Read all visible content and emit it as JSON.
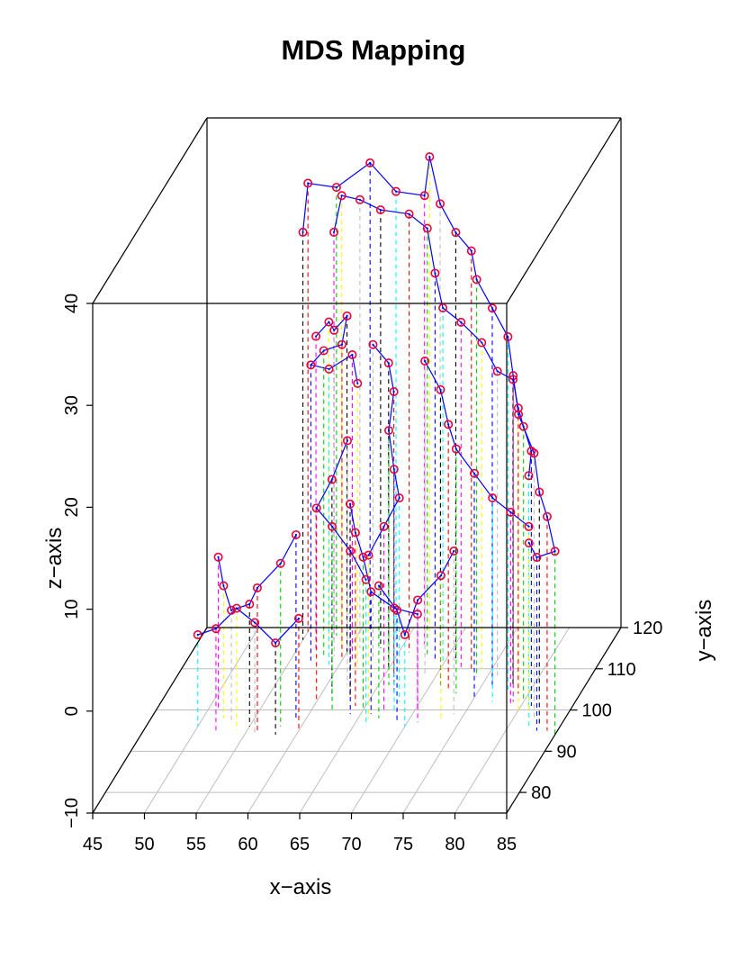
{
  "chart_data": {
    "type": "scatter3d",
    "title": "MDS Mapping",
    "xlabel": "x−axis",
    "ylabel": "y−axis",
    "zlabel": "z−axis",
    "xlim": [
      45,
      85
    ],
    "ylim": [
      75,
      120
    ],
    "zlim": [
      -10,
      40
    ],
    "xticks": [
      "45",
      "50",
      "55",
      "60",
      "65",
      "70",
      "75",
      "80",
      "85"
    ],
    "yticks": [
      "80",
      "90",
      "100",
      "110",
      "120"
    ],
    "zticks": [
      "−10",
      "0",
      "10",
      "20",
      "30",
      "40"
    ],
    "point_color": "#e8003c",
    "line_color": "#0000ff",
    "drop_line_colors": [
      "#000000",
      "#ff0000",
      "#00cd00",
      "#0000ff",
      "#00ffff",
      "#ff00ff",
      "#ffff00",
      "#bebebe"
    ],
    "grid": true,
    "paths": [
      [
        [
          55,
          117,
          30
        ],
        [
          55,
          119,
          34
        ],
        [
          58,
          118,
          34
        ],
        [
          61,
          119,
          36
        ],
        [
          64,
          117,
          34
        ],
        [
          67,
          116,
          34
        ],
        [
          67,
          118,
          37
        ],
        [
          69,
          114,
          34
        ],
        [
          71,
          112,
          32
        ],
        [
          73,
          110,
          31
        ],
        [
          74,
          108,
          29
        ],
        [
          76,
          106,
          27
        ],
        [
          78,
          104,
          25
        ],
        [
          79,
          102,
          22
        ],
        [
          80,
          100,
          19
        ],
        [
          82,
          98,
          16
        ],
        [
          83,
          96,
          13
        ],
        [
          84,
          95,
          11
        ],
        [
          85,
          94,
          8
        ],
        [
          83,
          95,
          7
        ],
        [
          82,
          96,
          8
        ]
      ],
      [
        [
          58,
          117,
          30
        ],
        [
          59,
          116,
          34
        ],
        [
          61,
          115,
          34
        ],
        [
          63,
          115,
          33
        ],
        [
          66,
          114,
          33
        ],
        [
          68,
          113,
          32
        ],
        [
          69,
          112,
          28
        ],
        [
          70,
          111,
          25
        ],
        [
          72,
          110,
          24
        ],
        [
          74,
          110,
          22
        ],
        [
          76,
          108,
          20
        ],
        [
          78,
          106,
          20
        ],
        [
          79,
          104,
          18
        ],
        [
          80,
          102,
          17
        ],
        [
          81,
          101,
          15
        ],
        [
          81,
          100,
          13
        ]
      ],
      [
        [
          57,
          114,
          21
        ],
        [
          58,
          115,
          22
        ],
        [
          59,
          113,
          22
        ],
        [
          60,
          114,
          23
        ],
        [
          60,
          112,
          21
        ],
        [
          58,
          113,
          20
        ],
        [
          57,
          112,
          19
        ],
        [
          59,
          111,
          19
        ],
        [
          61,
          112,
          20
        ],
        [
          62,
          110,
          18
        ]
      ],
      [
        [
          63,
          112,
          21
        ],
        [
          65,
          110,
          20
        ],
        [
          66,
          108,
          18
        ],
        [
          66,
          106,
          15
        ],
        [
          67,
          104,
          12
        ],
        [
          68,
          102,
          10
        ],
        [
          67,
          100,
          8
        ],
        [
          66,
          98,
          6
        ]
      ],
      [
        [
          69,
          108,
          21
        ],
        [
          71,
          106,
          19
        ],
        [
          72,
          105,
          16
        ],
        [
          73,
          104,
          14
        ],
        [
          75,
          103,
          12
        ],
        [
          77,
          102,
          10
        ],
        [
          79,
          101,
          9
        ],
        [
          81,
          100,
          8
        ]
      ],
      [
        [
          62,
          106,
          14
        ],
        [
          61,
          104,
          11
        ],
        [
          60,
          102,
          9
        ],
        [
          62,
          100,
          8
        ],
        [
          64,
          99,
          6
        ],
        [
          66,
          97,
          4
        ]
      ],
      [
        [
          51,
          100,
          5
        ],
        [
          52,
          98,
          3
        ],
        [
          53,
          97,
          1
        ],
        [
          55,
          96,
          2
        ],
        [
          56,
          95,
          4
        ],
        [
          58,
          96,
          6
        ],
        [
          59,
          98,
          8
        ]
      ],
      [
        [
          50,
          96,
          -1
        ],
        [
          52,
          95,
          0
        ],
        [
          54,
          95,
          2
        ],
        [
          56,
          94,
          1
        ],
        [
          58,
          94,
          -1
        ],
        [
          60,
          95,
          1
        ]
      ],
      [
        [
          67,
          98,
          3
        ],
        [
          69,
          97,
          1
        ],
        [
          70,
          96,
          -1
        ],
        [
          71,
          97,
          2
        ],
        [
          73,
          98,
          4
        ],
        [
          74,
          99,
          6
        ]
      ],
      [
        [
          63,
          103,
          9
        ],
        [
          64,
          101,
          7
        ],
        [
          65,
          100,
          5
        ],
        [
          66,
          99,
          2
        ],
        [
          68,
          100,
          0
        ],
        [
          70,
          101,
          -1
        ]
      ]
    ]
  }
}
